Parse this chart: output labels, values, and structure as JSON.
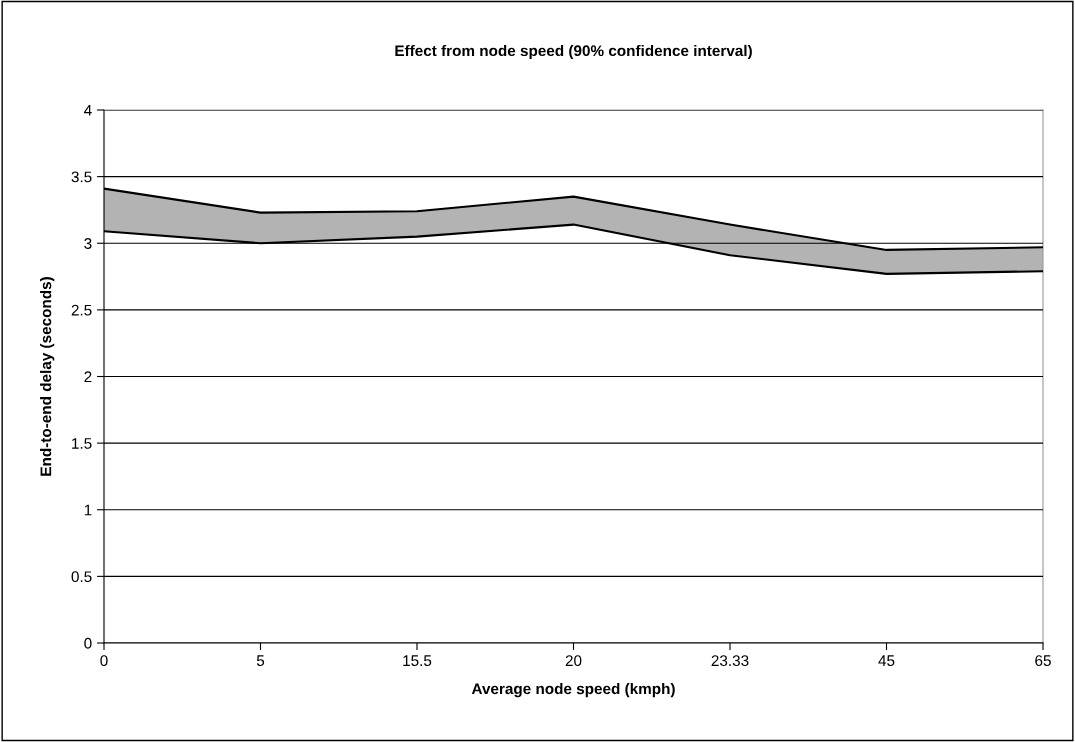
{
  "chart_data": {
    "type": "area",
    "stacked": true,
    "title": "Effect from node speed (90% confidence interval)",
    "xlabel": "Average node speed (kmph)",
    "ylabel": "End-to-end delay (seconds)",
    "categories": [
      "0",
      "5",
      "15.5",
      "20",
      "23.33",
      "45",
      "65"
    ],
    "series": [
      {
        "color": "#ffffff",
        "values": [
          3.09,
          3.0,
          3.05,
          3.14,
          2.91,
          2.77,
          2.79
        ]
      },
      {
        "color": "#b3b3b3",
        "values": [
          0.32,
          0.23,
          0.19,
          0.21,
          0.23,
          0.18,
          0.18
        ]
      }
    ],
    "ylim": [
      0,
      4
    ],
    "yticks": [
      0,
      0.5,
      1,
      1.5,
      2,
      2.5,
      3,
      3.5,
      4
    ],
    "grid": "y",
    "legend": false
  }
}
